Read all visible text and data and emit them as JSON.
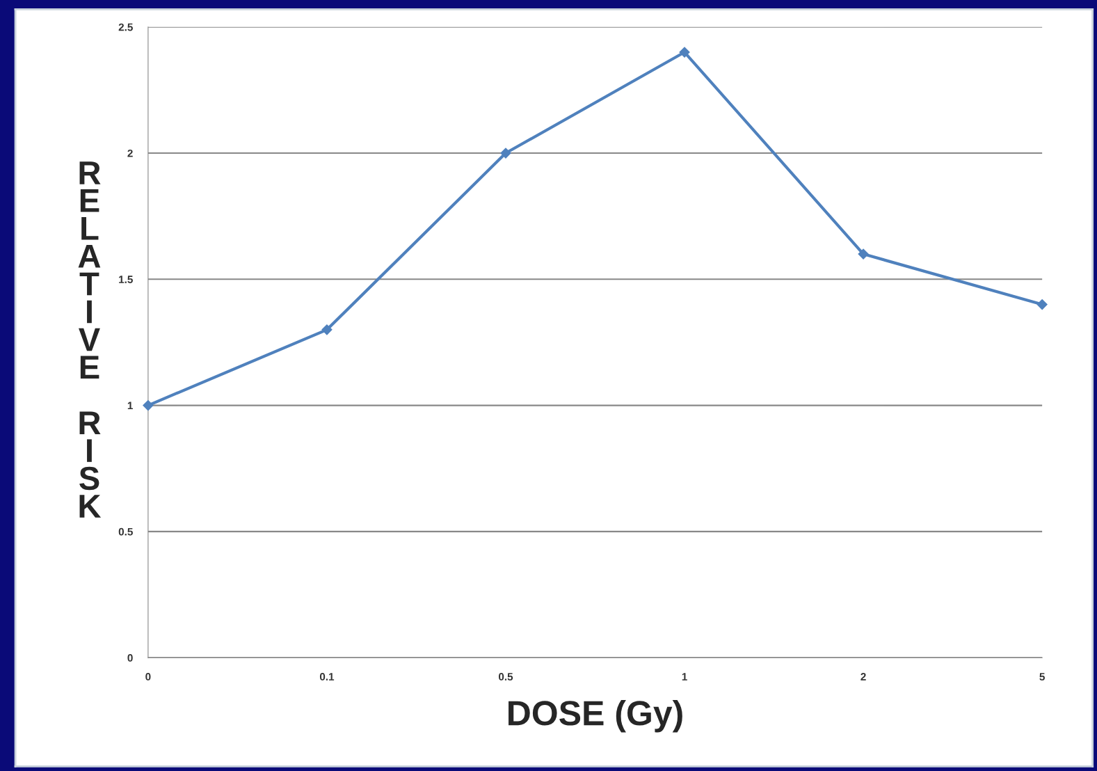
{
  "chart_data": {
    "type": "line",
    "xlabel": "DOSE (Gy)",
    "ylabel": "RELATIVE RISK",
    "categories": [
      "0",
      "0.1",
      "0.5",
      "1",
      "2",
      "5"
    ],
    "series": [
      {
        "color": "#4f81bd",
        "values": [
          1,
          1.3,
          2,
          2.4,
          1.6,
          1.4
        ]
      }
    ],
    "ylim": [
      0,
      2.5
    ],
    "yticks": [
      0,
      0.5,
      1,
      1.5,
      2,
      2.5
    ],
    "grid": "y",
    "marker": "diamond",
    "line_style": "solid"
  }
}
